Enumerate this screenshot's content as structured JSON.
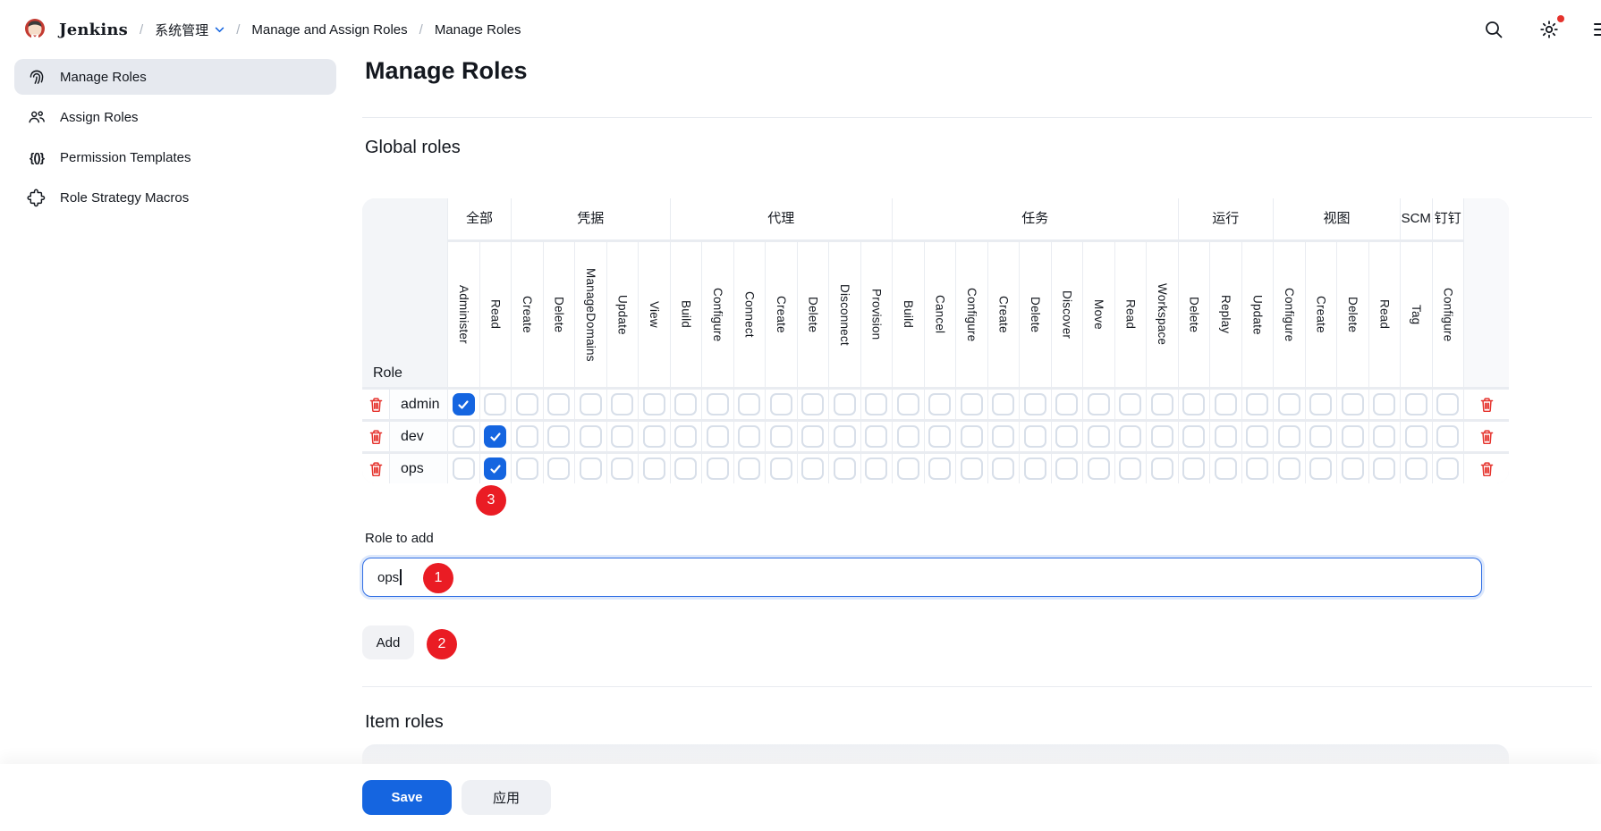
{
  "header": {
    "product": "Jenkins",
    "breadcrumbs": [
      {
        "label": "系统管理",
        "has_chevron": true
      },
      {
        "label": "Manage and Assign Roles",
        "has_chevron": false
      },
      {
        "label": "Manage Roles",
        "has_chevron": false
      }
    ]
  },
  "sidebar": {
    "items": [
      {
        "label": "Manage Roles",
        "icon": "fingerprint",
        "active": true
      },
      {
        "label": "Assign Roles",
        "icon": "people",
        "active": false
      },
      {
        "label": "Permission Templates",
        "icon": "braces",
        "active": false
      },
      {
        "label": "Role Strategy Macros",
        "icon": "puzzle",
        "active": false
      }
    ]
  },
  "main": {
    "title": "Manage Roles",
    "global_section_title": "Global roles",
    "item_section_title": "Item roles",
    "role_to_add_label": "Role to add",
    "role_input_value": "ops",
    "add_button_label": "Add"
  },
  "matrix": {
    "role_column_header": "Role",
    "groups": [
      {
        "label": "全部",
        "permissions": [
          "Administer",
          "Read"
        ]
      },
      {
        "label": "凭据",
        "permissions": [
          "Create",
          "Delete",
          "ManageDomains",
          "Update",
          "View"
        ]
      },
      {
        "label": "代理",
        "permissions": [
          "Build",
          "Configure",
          "Connect",
          "Create",
          "Delete",
          "Disconnect",
          "Provision"
        ]
      },
      {
        "label": "任务",
        "permissions": [
          "Build",
          "Cancel",
          "Configure",
          "Create",
          "Delete",
          "Discover",
          "Move",
          "Read",
          "Workspace"
        ]
      },
      {
        "label": "运行",
        "permissions": [
          "Delete",
          "Replay",
          "Update"
        ]
      },
      {
        "label": "视图",
        "permissions": [
          "Configure",
          "Create",
          "Delete",
          "Read"
        ]
      },
      {
        "label": "SCM",
        "permissions": [
          "Tag"
        ]
      },
      {
        "label": "钉钉",
        "permissions": [
          "Configure"
        ]
      }
    ],
    "rows": [
      {
        "name": "admin",
        "checked_permissions": [
          "全部/Administer"
        ],
        "checked_indices": [
          0
        ]
      },
      {
        "name": "dev",
        "checked_permissions": [
          "全部/Read"
        ],
        "checked_indices": [
          1
        ]
      },
      {
        "name": "ops",
        "checked_permissions": [
          "全部/Read"
        ],
        "checked_indices": [
          1
        ]
      }
    ]
  },
  "annotations": [
    {
      "label": "1",
      "target": "role-to-add-input"
    },
    {
      "label": "2",
      "target": "add-button"
    },
    {
      "label": "3",
      "target": "ops-read-checkbox"
    }
  ],
  "footer": {
    "save_label": "Save",
    "apply_label": "应用"
  },
  "colors": {
    "accent": "#1565e0",
    "danger": "#e5322c",
    "badge": "#ea1c24"
  }
}
